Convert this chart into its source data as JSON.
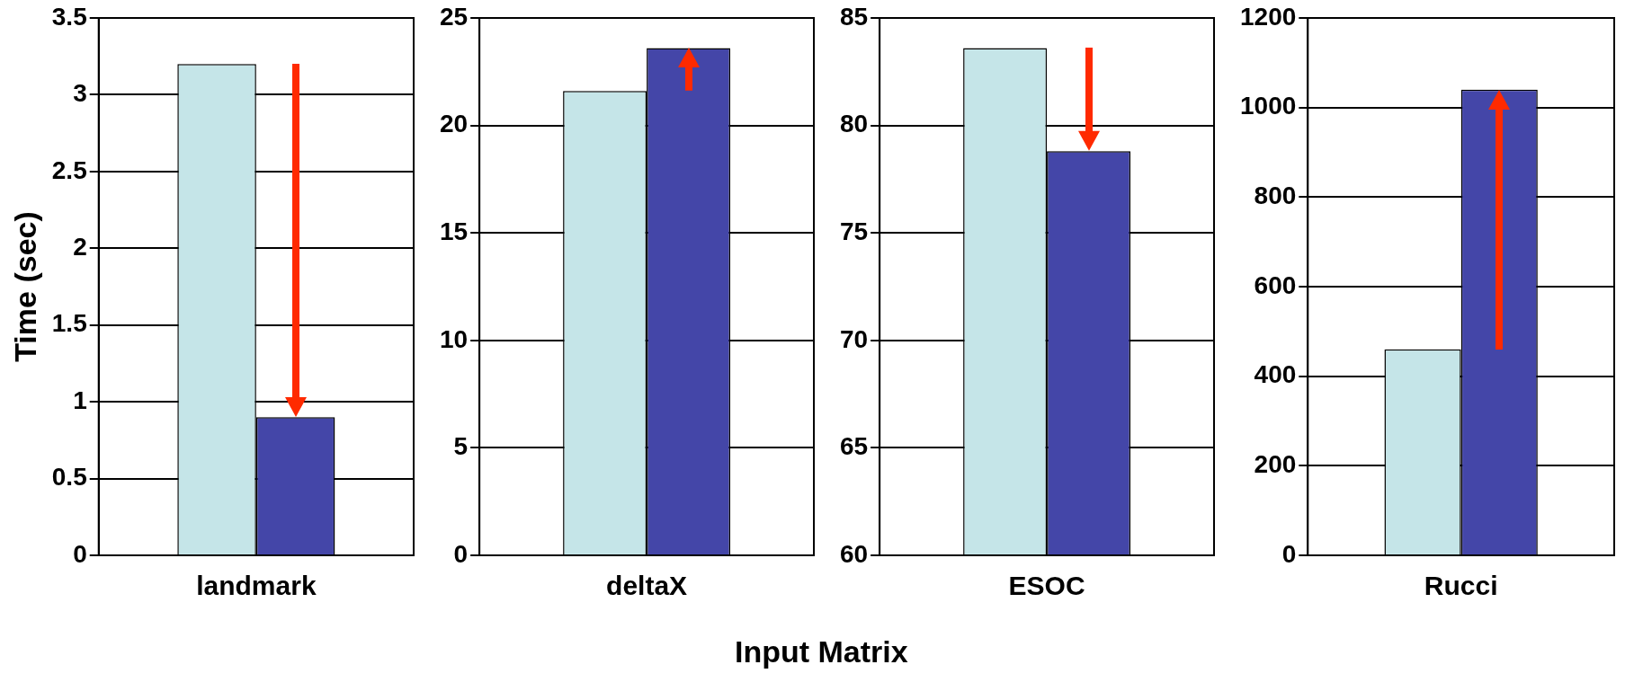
{
  "chart_data": [
    {
      "type": "bar",
      "ylabel": "Time (sec)",
      "categories": [
        "landmark"
      ],
      "series": [
        {
          "color": "#c5e5e8",
          "values": [
            3.2
          ]
        },
        {
          "color": "#4446a8",
          "values": [
            0.9
          ]
        }
      ],
      "ylim": [
        0,
        3.5
      ],
      "yticks": [
        0,
        0.5,
        1,
        1.5,
        2,
        2.5,
        3,
        3.5
      ],
      "grid": "y"
    },
    {
      "type": "bar",
      "xlabel": "Input Matrix",
      "categories": [
        "deltaX"
      ],
      "series": [
        {
          "color": "#c5e5e8",
          "values": [
            21.6
          ]
        },
        {
          "color": "#4446a8",
          "values": [
            23.6
          ]
        }
      ],
      "ylim": [
        0,
        25
      ],
      "yticks": [
        0,
        5,
        10,
        15,
        20,
        25
      ],
      "grid": "y"
    },
    {
      "type": "bar",
      "categories": [
        "ESOC"
      ],
      "series": [
        {
          "color": "#c5e5e8",
          "values": [
            83.6
          ]
        },
        {
          "color": "#4446a8",
          "values": [
            78.8
          ]
        }
      ],
      "ylim": [
        60,
        85
      ],
      "yticks": [
        60,
        65,
        70,
        75,
        80,
        85
      ],
      "grid": "y"
    },
    {
      "type": "bar",
      "categories": [
        "Rucci"
      ],
      "series": [
        {
          "color": "#c5e5e8",
          "values": [
            460
          ]
        },
        {
          "color": "#4446a8",
          "values": [
            1040
          ]
        }
      ],
      "ylim": [
        0,
        1200
      ],
      "yticks": [
        0,
        200,
        400,
        600,
        800,
        1000,
        1200
      ],
      "grid": "y"
    }
  ]
}
